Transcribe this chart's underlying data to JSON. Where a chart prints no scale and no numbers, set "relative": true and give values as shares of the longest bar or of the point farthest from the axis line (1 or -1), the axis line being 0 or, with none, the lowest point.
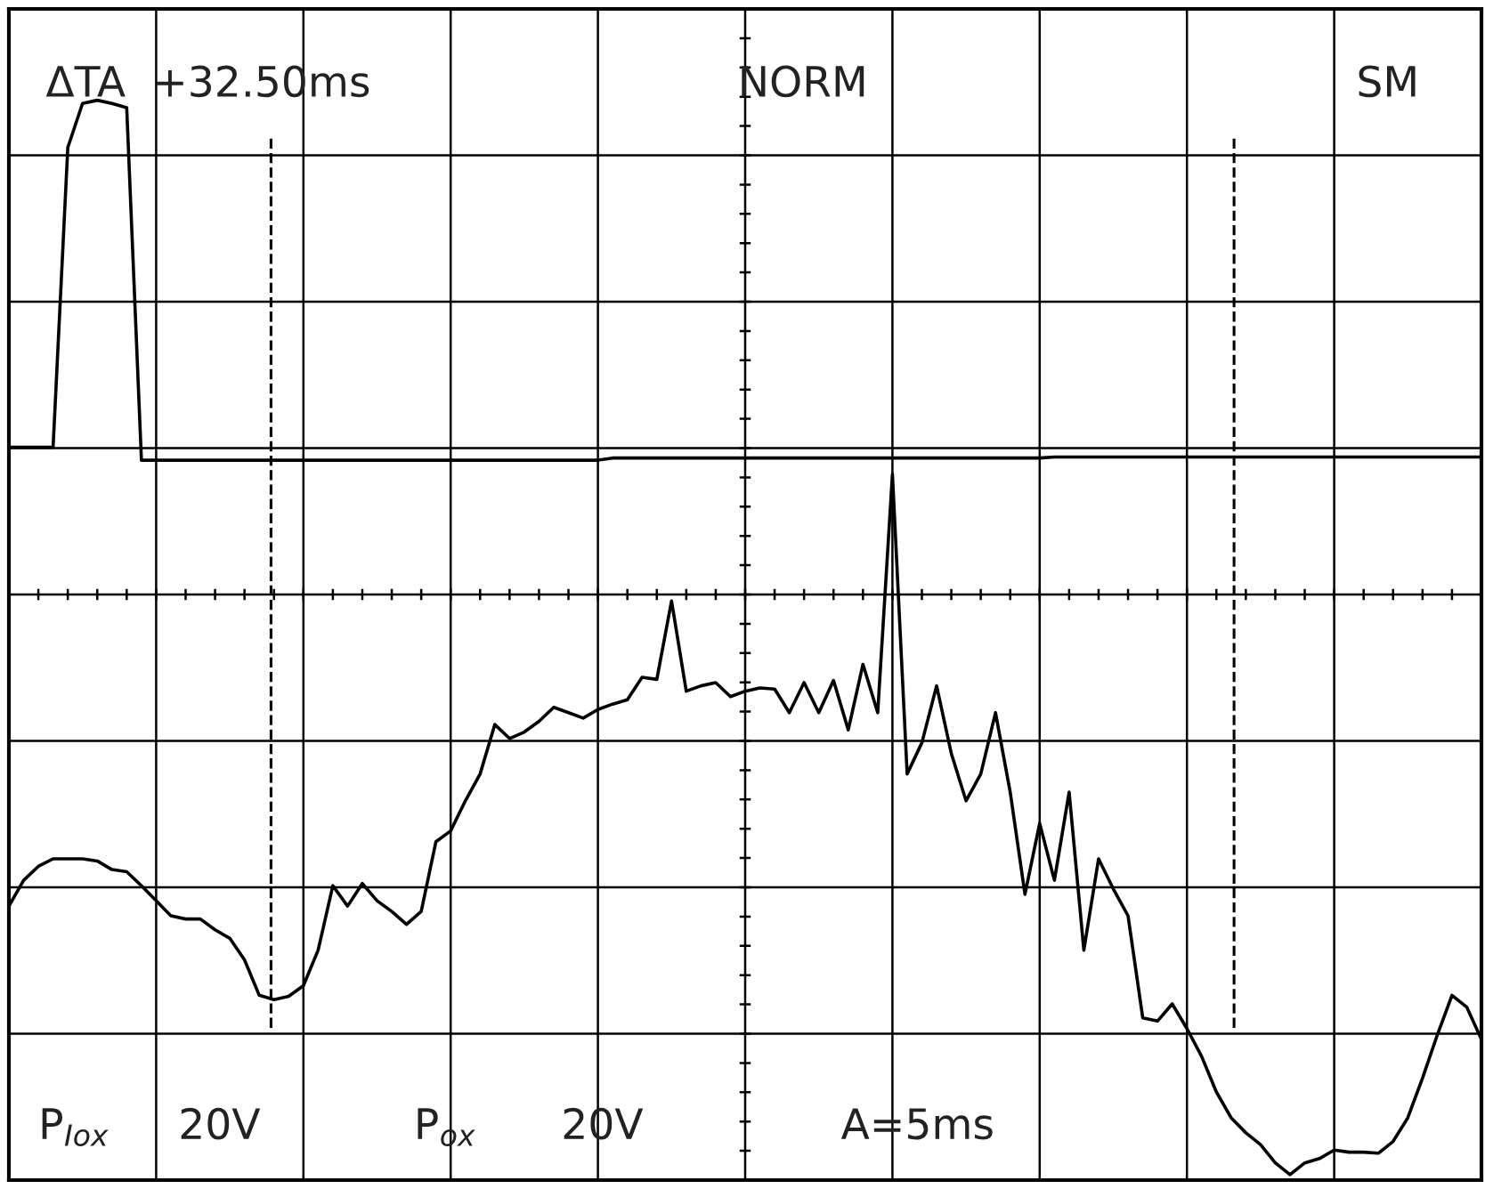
{
  "chart_data": {
    "type": "line",
    "relative": true,
    "grid": true,
    "line_style": "solid",
    "marker": "none",
    "categories": [
      null,
      null,
      null,
      null,
      null,
      null,
      null,
      null,
      null,
      null,
      null,
      null,
      null,
      null,
      null,
      null,
      null,
      null,
      null,
      null,
      null,
      null,
      null,
      null,
      null,
      null,
      null,
      null,
      null,
      null,
      null,
      null,
      null,
      null,
      null,
      null,
      null,
      null,
      null,
      null,
      null,
      null,
      null,
      null,
      null,
      null,
      null,
      null,
      null,
      null,
      null,
      null,
      null,
      null,
      null,
      null,
      null,
      null,
      null,
      null,
      null,
      null,
      null,
      null,
      null,
      null,
      null,
      null,
      null,
      null,
      null,
      null,
      null,
      null,
      null,
      null,
      null,
      null,
      null,
      null,
      null,
      null,
      null,
      null,
      null,
      null,
      null,
      null,
      null,
      null,
      null,
      null,
      null,
      null,
      null,
      null,
      null,
      null,
      null,
      null,
      null
    ],
    "series": [
      {
        "color": "#000000",
        "values": [
          0.677,
          0.677,
          0.677,
          0.677,
          0.956,
          0.997,
          1.0,
          0.997,
          0.993,
          0.665,
          0.665,
          0.665,
          0.665,
          0.665,
          0.665,
          0.665,
          0.665,
          0.665,
          0.665,
          0.665,
          0.665,
          0.665,
          0.665,
          0.665,
          0.665,
          0.665,
          0.665,
          0.665,
          0.665,
          0.665,
          0.665,
          0.665,
          0.665,
          0.665,
          0.665,
          0.665,
          0.665,
          0.665,
          0.665,
          0.665,
          0.665,
          0.667,
          0.667,
          0.667,
          0.667,
          0.667,
          0.667,
          0.667,
          0.667,
          0.667,
          0.667,
          0.667,
          0.667,
          0.667,
          0.667,
          0.667,
          0.667,
          0.667,
          0.667,
          0.667,
          0.667,
          0.667,
          0.667,
          0.667,
          0.667,
          0.667,
          0.667,
          0.667,
          0.667,
          0.667,
          0.667,
          0.668,
          0.668,
          0.668,
          0.668,
          0.668,
          0.668,
          0.668,
          0.668,
          0.668,
          0.668,
          0.668,
          0.668,
          0.668,
          0.668,
          0.668,
          0.668,
          0.668,
          0.668,
          0.668,
          0.668,
          0.668,
          0.668,
          0.668,
          0.668,
          0.668,
          0.668,
          0.668,
          0.668,
          0.668,
          0.668
        ]
      },
      {
        "color": "#000000",
        "values": [
          0.25,
          0.274,
          0.287,
          0.294,
          0.294,
          0.294,
          0.292,
          0.284,
          0.282,
          0.269,
          0.255,
          0.241,
          0.238,
          0.238,
          0.228,
          0.22,
          0.2,
          0.167,
          0.163,
          0.166,
          0.176,
          0.209,
          0.269,
          0.25,
          0.271,
          0.255,
          0.245,
          0.233,
          0.245,
          0.31,
          0.32,
          0.348,
          0.373,
          0.419,
          0.406,
          0.412,
          0.422,
          0.435,
          0.43,
          0.425,
          0.433,
          0.438,
          0.442,
          0.463,
          0.461,
          0.534,
          0.45,
          0.455,
          0.458,
          0.445,
          0.45,
          0.453,
          0.452,
          0.43,
          0.458,
          0.43,
          0.46,
          0.414,
          0.475,
          0.43,
          0.652,
          0.373,
          0.402,
          0.455,
          0.392,
          0.348,
          0.373,
          0.43,
          0.356,
          0.261,
          0.327,
          0.274,
          0.356,
          0.209,
          0.294,
          0.266,
          0.241,
          0.146,
          0.143,
          0.159,
          0.136,
          0.11,
          0.077,
          0.053,
          0.039,
          0.028,
          0.011,
          0.0,
          0.011,
          0.015,
          0.023,
          0.021,
          0.021,
          0.02,
          0.031,
          0.053,
          0.09,
          0.13,
          0.167,
          0.156,
          0.126
        ]
      }
    ],
    "annotations": [
      "ΔTA  +32.50ms",
      "NORM",
      "SM",
      "P$_{Iox}$",
      "20V",
      "P$_{ox}$",
      "20V",
      "A=5ms"
    ]
  }
}
